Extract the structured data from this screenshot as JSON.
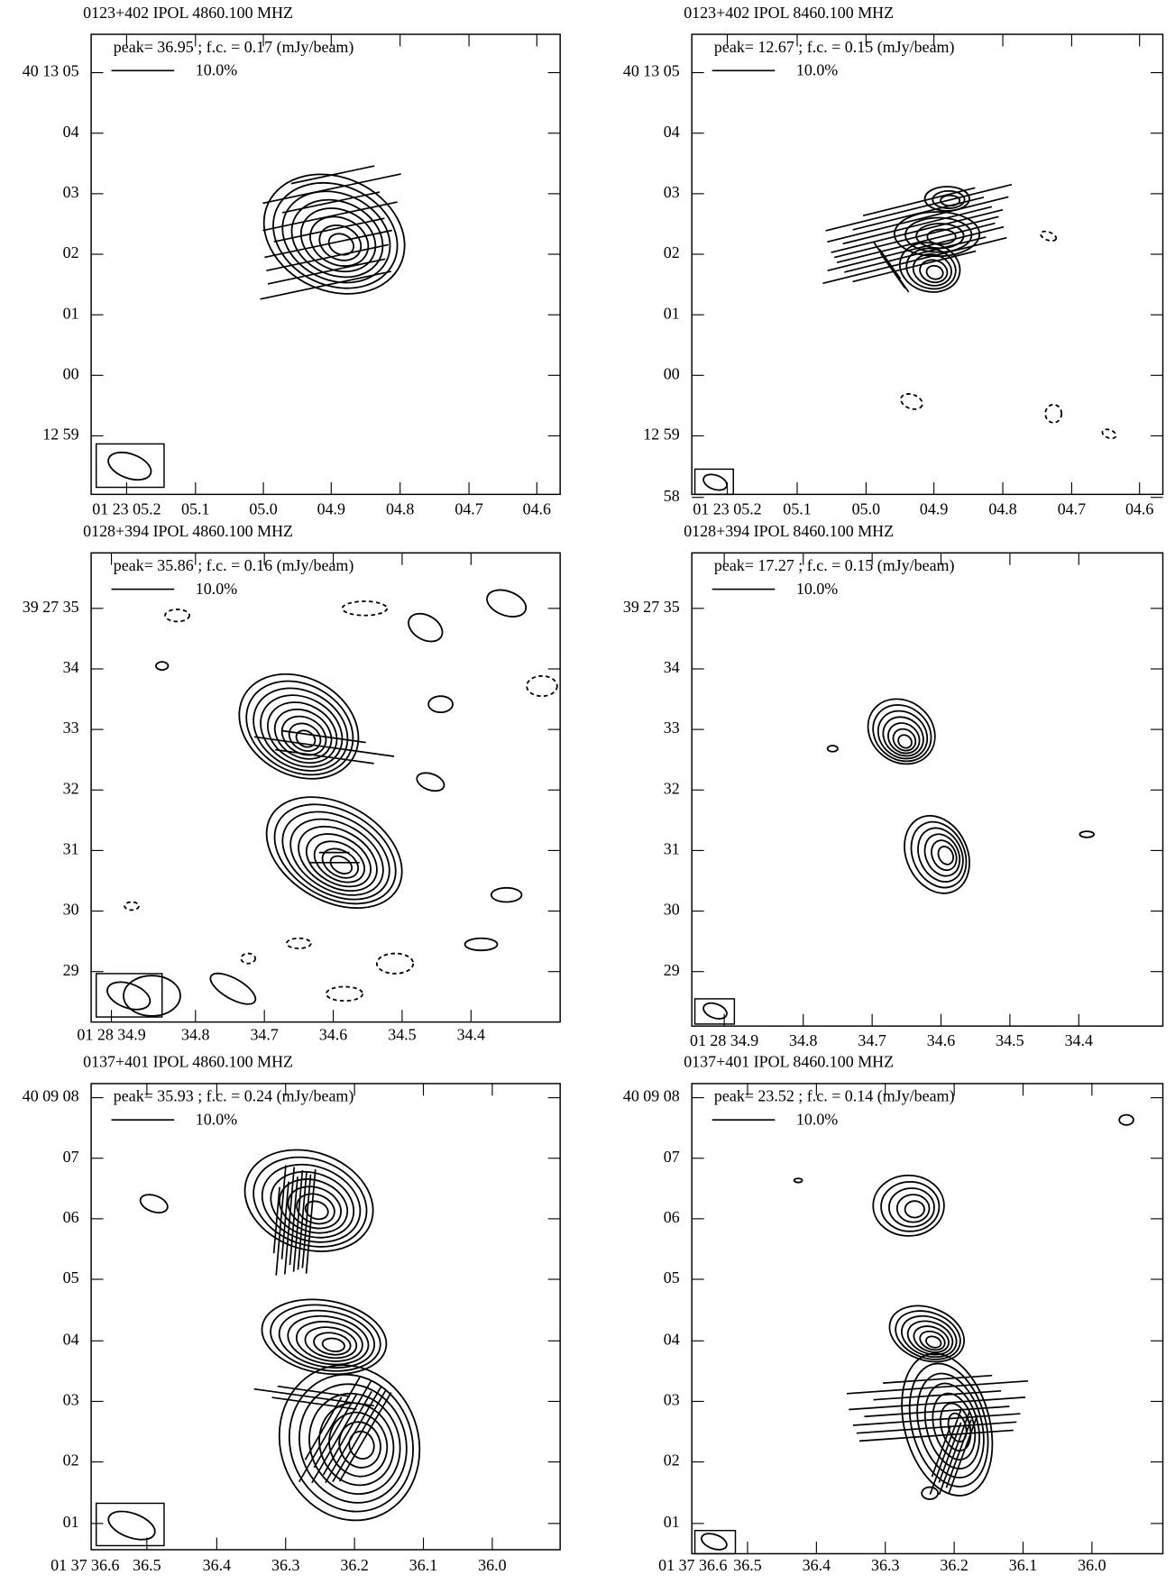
{
  "panels": [
    {
      "title": "0123+402  IPOL  4860.100 MHZ",
      "legend": "peak=  36.95 ;  f.c. =  0.17   (mJy/beam)",
      "scale": "10.0%",
      "yticks": [
        "40 13 05",
        "04",
        "03",
        "02",
        "01",
        "00",
        "12 59"
      ],
      "xticks": [
        "01 23 05.2",
        "05.1",
        "05.0",
        "04.9",
        "04.8",
        "04.7",
        "04.6"
      ]
    },
    {
      "title": "0123+402  IPOL  8460.100 MHZ",
      "legend": "peak=  12.67 ;  f.c. =  0.15   (mJy/beam)",
      "scale": "10.0%",
      "yticks": [
        "40 13 05",
        "04",
        "03",
        "02",
        "01",
        "00",
        "12 59",
        "58"
      ],
      "xticks": [
        "01 23 05.2",
        "05.1",
        "05.0",
        "04.9",
        "04.8",
        "04.7",
        "04.6"
      ]
    },
    {
      "title": "0128+394  IPOL  4860.100 MHZ",
      "legend": "peak=  35.86 ;  f.c. =  0.16   (mJy/beam)",
      "scale": "10.0%",
      "yticks": [
        "39 27 35",
        "34",
        "33",
        "32",
        "31",
        "30",
        "29"
      ],
      "xticks": [
        "01 28 34.9",
        "34.8",
        "34.7",
        "34.6",
        "34.5",
        "34.4"
      ]
    },
    {
      "title": "0128+394  IPOL  8460.100 MHZ",
      "legend": "peak=  17.27 ;  f.c. =  0.15   (mJy/beam)",
      "scale": "10.0%",
      "yticks": [
        "39 27 35",
        "34",
        "33",
        "32",
        "31",
        "30",
        "29"
      ],
      "xticks": [
        "01 28 34.9",
        "34.8",
        "34.7",
        "34.6",
        "34.5",
        "34.4"
      ]
    },
    {
      "title": "0137+401  IPOL  4860.100 MHZ",
      "legend": "peak=  35.93 ;  f.c. =  0.24   (mJy/beam)",
      "scale": "10.0%",
      "yticks": [
        "40 09 08",
        "07",
        "06",
        "05",
        "04",
        "03",
        "02",
        "01"
      ],
      "xticks": [
        "01 37 36.6",
        "36.5",
        "36.4",
        "36.3",
        "36.2",
        "36.1",
        "36.0"
      ]
    },
    {
      "title": "0137+401  IPOL  8460.100 MHZ",
      "legend": "peak=  23.52 ;  f.c. =  0.14   (mJy/beam)",
      "scale": "10.0%",
      "yticks": [
        "40 09 08",
        "07",
        "06",
        "05",
        "04",
        "03",
        "02",
        "01"
      ],
      "xticks": [
        "01 37 36.6",
        "36.5",
        "36.4",
        "36.3",
        "36.2",
        "36.1",
        "36.0"
      ]
    }
  ]
}
